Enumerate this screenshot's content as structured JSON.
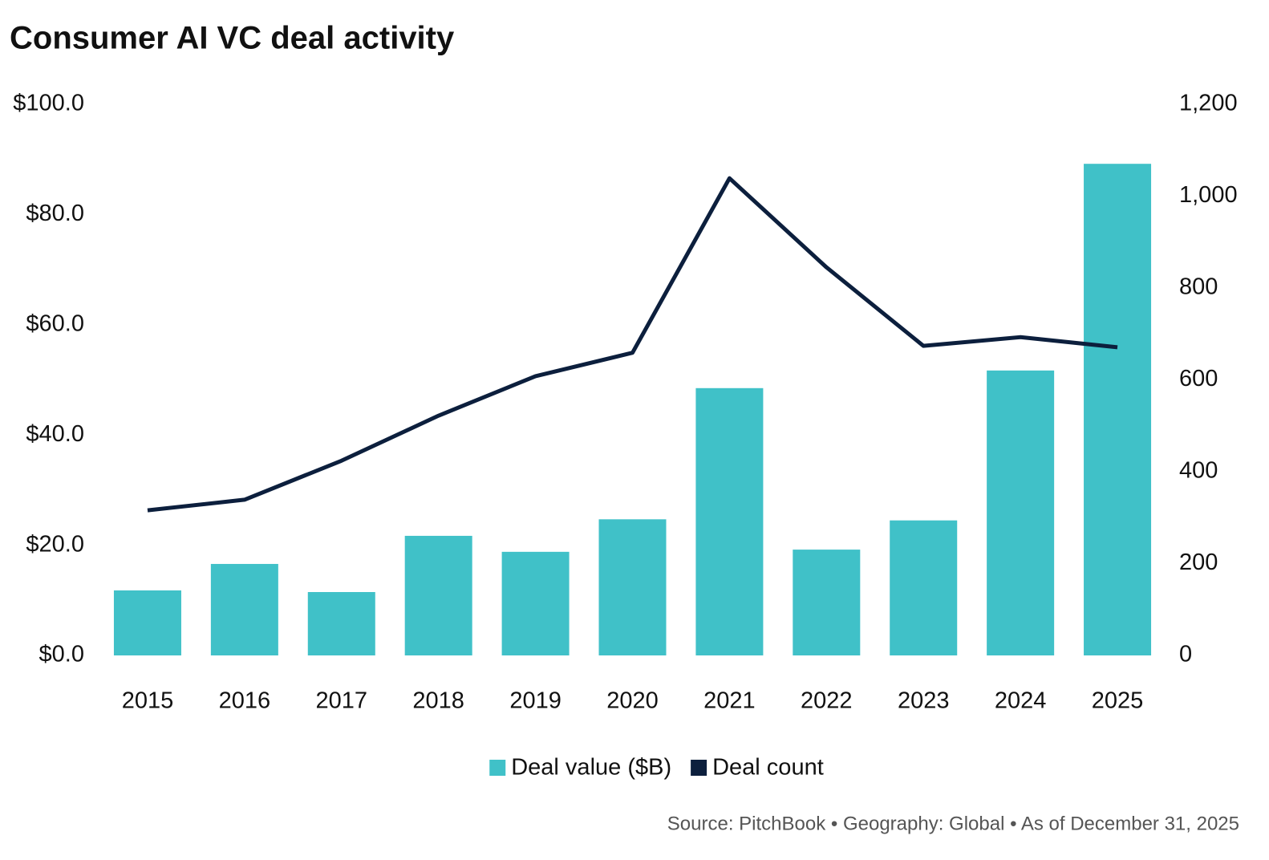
{
  "chart_data": {
    "type": "combo",
    "title": "Consumer AI VC deal activity",
    "source": "Source: PitchBook • Geography: Global • As of December 31, 2025",
    "categories": [
      "2015",
      "2016",
      "2017",
      "2018",
      "2019",
      "2020",
      "2021",
      "2022",
      "2023",
      "2024",
      "2025"
    ],
    "series": [
      {
        "name": "Deal value ($B)",
        "type": "bar",
        "color": "#40c1c8",
        "axis": "y",
        "values": [
          11.8,
          16.6,
          11.5,
          21.7,
          18.8,
          24.7,
          48.5,
          19.2,
          24.5,
          51.7,
          89.2
        ]
      },
      {
        "name": "Deal count",
        "type": "line",
        "color": "#0c1f3d",
        "axis": "y2",
        "values": [
          316,
          339,
          424,
          522,
          608,
          659,
          1039,
          845,
          674,
          693,
          671
        ]
      }
    ],
    "ylim": [
      0,
      100
    ],
    "yticks": [
      {
        "value": 0,
        "label": "$0.0"
      },
      {
        "value": 20,
        "label": "$20.0"
      },
      {
        "value": 40,
        "label": "$40.0"
      },
      {
        "value": 60,
        "label": "$60.0"
      },
      {
        "value": 80,
        "label": "$80.0"
      },
      {
        "value": 100,
        "label": "$100.0"
      }
    ],
    "y2lim": [
      0,
      1200
    ],
    "y2ticks": [
      0,
      200,
      400,
      600,
      800,
      {
        "value": 1000,
        "label": "1,000"
      },
      {
        "value": 1200,
        "label": "1,200"
      }
    ],
    "grid": false,
    "legend": "bottom"
  }
}
